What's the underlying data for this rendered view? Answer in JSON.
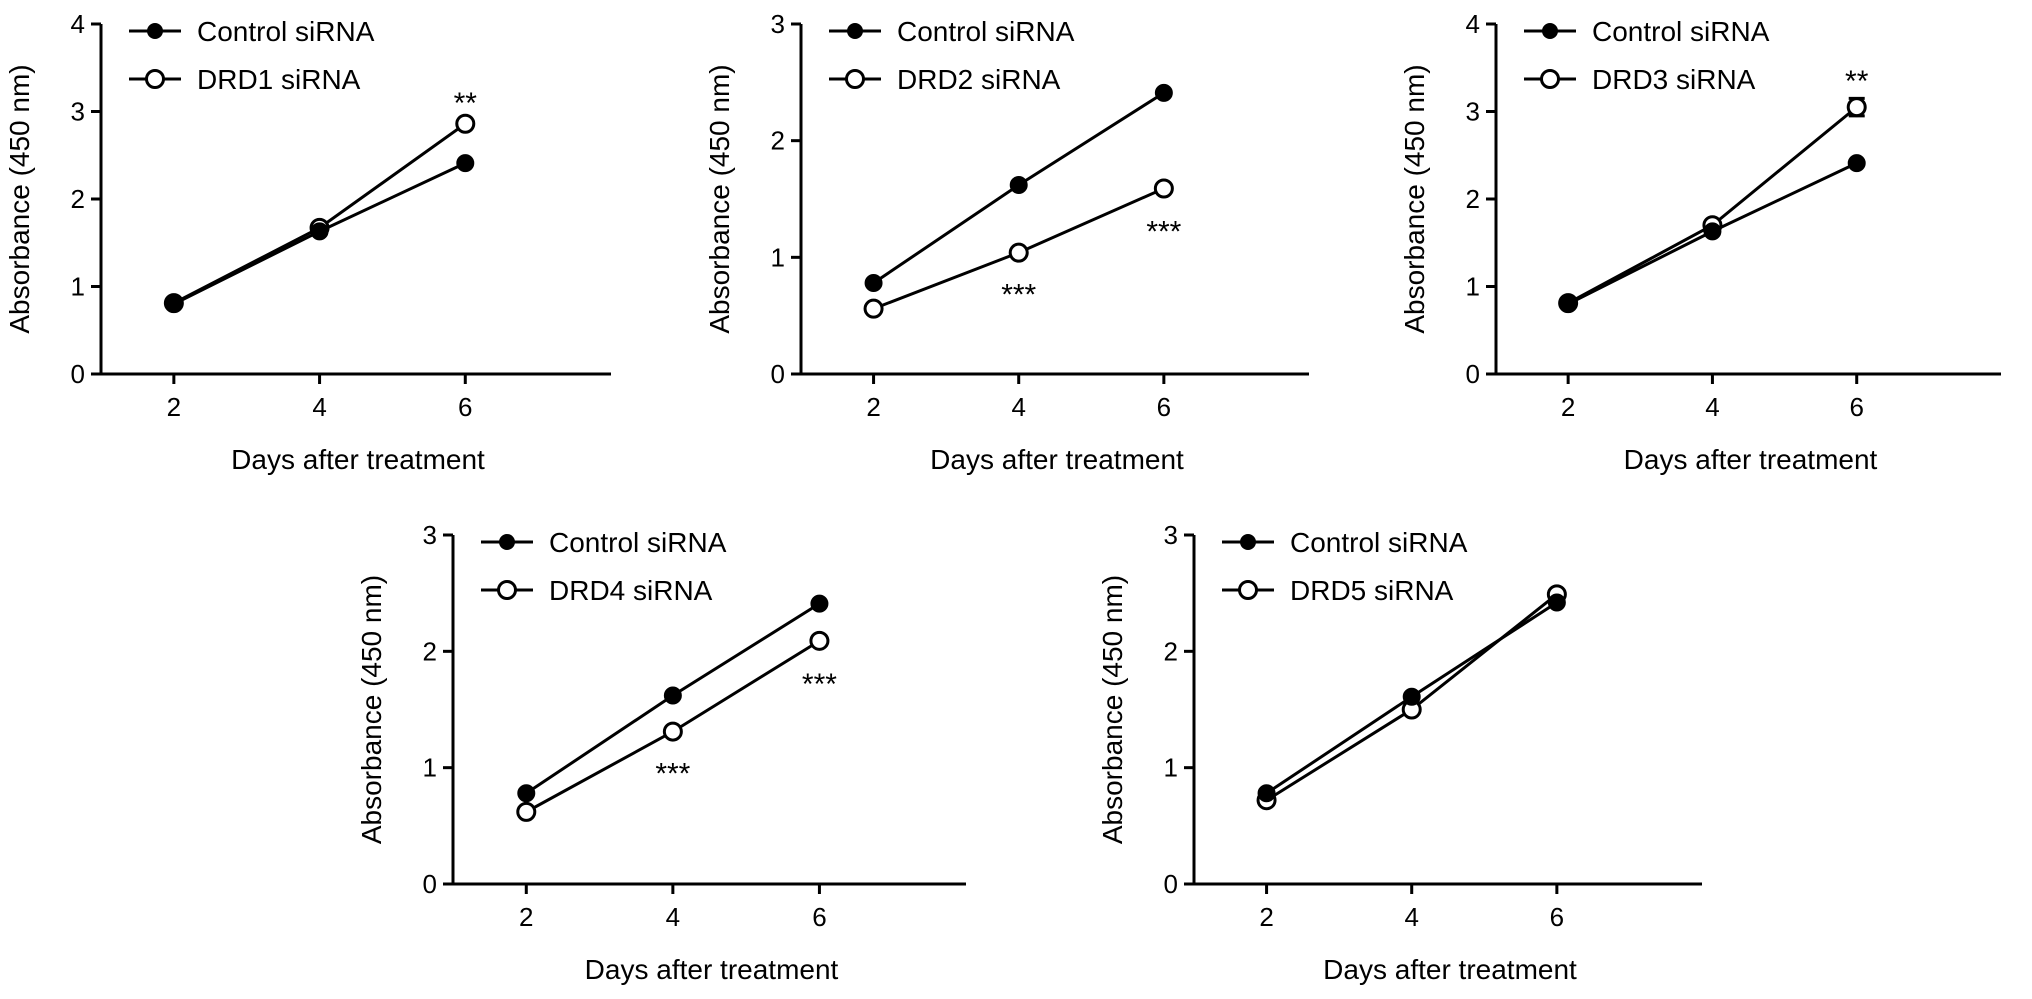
{
  "chart_data": [
    {
      "type": "line",
      "title": "",
      "xlabel": "Days after treatment",
      "ylabel": "Absorbance (450 nm)",
      "x": [
        2,
        4,
        6
      ],
      "xticks": [
        "2",
        "4",
        "6"
      ],
      "xlim": [
        1,
        8
      ],
      "ylim": [
        0,
        4
      ],
      "yticks": [
        "0",
        "1",
        "2",
        "3",
        "4"
      ],
      "legend_position": "top-left",
      "series": [
        {
          "name": "Control siRNA",
          "marker": "filled-circle",
          "values": [
            0.8,
            1.63,
            2.41
          ]
        },
        {
          "name": "DRD1 siRNA",
          "marker": "open-circle",
          "values": [
            0.81,
            1.67,
            2.86
          ]
        }
      ],
      "annotations": [
        {
          "x": 6,
          "text": "**",
          "position": "above",
          "y": 3.1
        }
      ]
    },
    {
      "type": "line",
      "title": "",
      "xlabel": "Days after treatment",
      "ylabel": "Absorbance (450 nm)",
      "x": [
        2,
        4,
        6
      ],
      "xticks": [
        "2",
        "4",
        "6"
      ],
      "xlim": [
        1,
        8
      ],
      "ylim": [
        0,
        3
      ],
      "yticks": [
        "0",
        "1",
        "2",
        "3"
      ],
      "legend_position": "top-left",
      "series": [
        {
          "name": "Control siRNA",
          "marker": "filled-circle",
          "values": [
            0.78,
            1.62,
            2.41
          ]
        },
        {
          "name": "DRD2 siRNA",
          "marker": "open-circle",
          "values": [
            0.56,
            1.04,
            1.59
          ]
        }
      ],
      "annotations": [
        {
          "x": 4,
          "text": "***",
          "position": "below",
          "y": 0.68
        },
        {
          "x": 6,
          "text": "***",
          "position": "below",
          "y": 1.22
        }
      ]
    },
    {
      "type": "line",
      "title": "",
      "xlabel": "Days after treatment",
      "ylabel": "Absorbance (450 nm)",
      "x": [
        2,
        4,
        6
      ],
      "xticks": [
        "2",
        "4",
        "6"
      ],
      "xlim": [
        1,
        8
      ],
      "ylim": [
        0,
        4
      ],
      "yticks": [
        "0",
        "1",
        "2",
        "3",
        "4"
      ],
      "legend_position": "top-left",
      "series": [
        {
          "name": "Control siRNA",
          "marker": "filled-circle",
          "values": [
            0.8,
            1.63,
            2.41
          ]
        },
        {
          "name": "DRD3 siRNA",
          "marker": "open-circle",
          "values": [
            0.81,
            1.7,
            3.05
          ],
          "errors": [
            0,
            0,
            0.1
          ]
        }
      ],
      "annotations": [
        {
          "x": 6,
          "text": "**",
          "position": "above",
          "y": 3.35
        }
      ]
    },
    {
      "type": "line",
      "title": "",
      "xlabel": "Days after treatment",
      "ylabel": "Absorbance (450 nm)",
      "x": [
        2,
        4,
        6
      ],
      "xticks": [
        "2",
        "4",
        "6"
      ],
      "xlim": [
        1,
        8
      ],
      "ylim": [
        0,
        3
      ],
      "yticks": [
        "0",
        "1",
        "2",
        "3"
      ],
      "legend_position": "top-left",
      "series": [
        {
          "name": "Control siRNA",
          "marker": "filled-circle",
          "values": [
            0.78,
            1.62,
            2.41
          ]
        },
        {
          "name": "DRD4 siRNA",
          "marker": "open-circle",
          "values": [
            0.62,
            1.31,
            2.09
          ]
        }
      ],
      "annotations": [
        {
          "x": 4,
          "text": "***",
          "position": "below",
          "y": 0.95
        },
        {
          "x": 6,
          "text": "***",
          "position": "below",
          "y": 1.72
        }
      ]
    },
    {
      "type": "line",
      "title": "",
      "xlabel": "Days after treatment",
      "ylabel": "Absorbance (450 nm)",
      "x": [
        2,
        4,
        6
      ],
      "xticks": [
        "2",
        "4",
        "6"
      ],
      "xlim": [
        1,
        8
      ],
      "ylim": [
        0,
        3
      ],
      "yticks": [
        "0",
        "1",
        "2",
        "3"
      ],
      "legend_position": "top-left",
      "series": [
        {
          "name": "Control siRNA",
          "marker": "filled-circle",
          "values": [
            0.78,
            1.61,
            2.42
          ]
        },
        {
          "name": "DRD5 siRNA",
          "marker": "open-circle",
          "values": [
            0.72,
            1.5,
            2.49
          ]
        }
      ],
      "annotations": []
    }
  ]
}
